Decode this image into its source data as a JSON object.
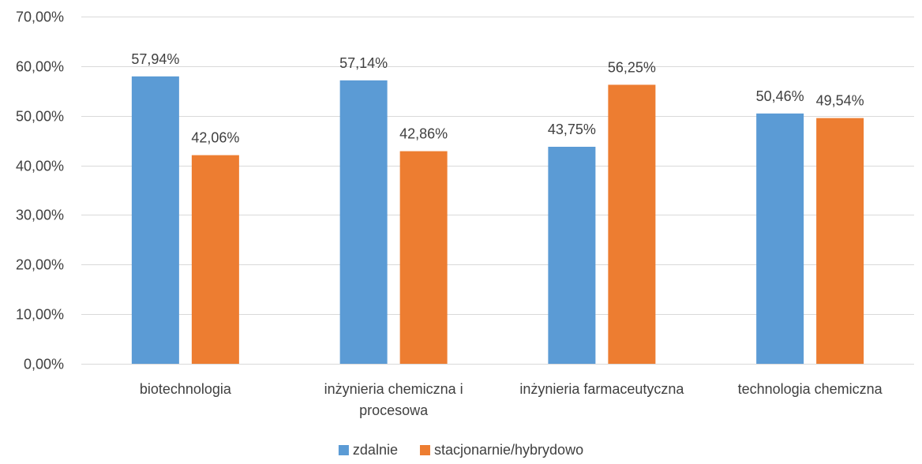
{
  "chart_data": {
    "type": "bar",
    "categories": [
      [
        "biotechnologia"
      ],
      [
        "inżynieria chemiczna i",
        "procesowa"
      ],
      [
        "inżynieria farmaceutyczna"
      ],
      [
        "technologia chemiczna"
      ]
    ],
    "series": [
      {
        "name": "zdalnie",
        "color": "#5B9BD5",
        "values": [
          57.94,
          57.14,
          43.75,
          50.46
        ],
        "labels": [
          "57,94%",
          "57,14%",
          "43,75%",
          "50,46%"
        ]
      },
      {
        "name": "stacjonarnie/hybrydowo",
        "color": "#ED7D31",
        "values": [
          42.06,
          42.86,
          56.25,
          49.54
        ],
        "labels": [
          "42,06%",
          "42,86%",
          "56,25%",
          "49,54%"
        ]
      }
    ],
    "ylim": [
      0,
      70
    ],
    "yticks": [
      "0,00%",
      "10,00%",
      "20,00%",
      "30,00%",
      "40,00%",
      "50,00%",
      "60,00%",
      "70,00%"
    ],
    "grid": true,
    "gridColor": "#D9D9D9",
    "legend_position": "bottom"
  }
}
